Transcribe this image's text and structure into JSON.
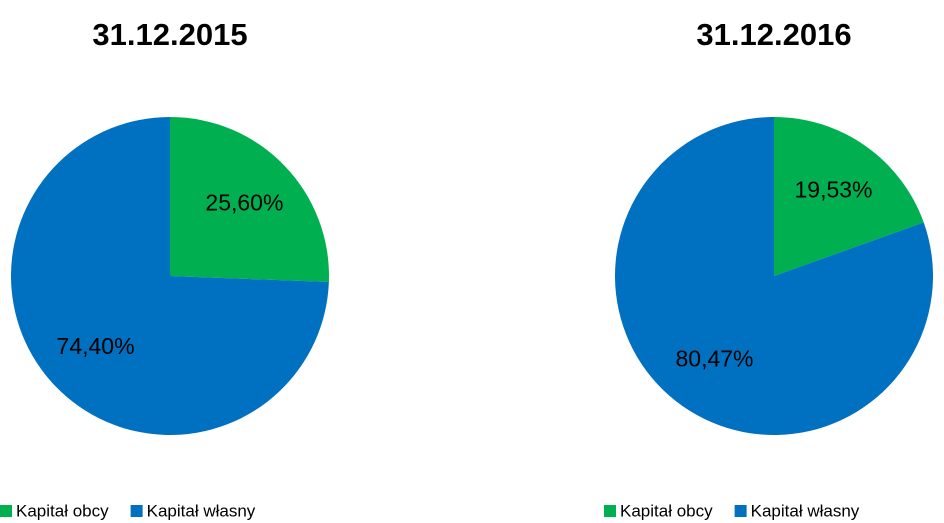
{
  "chart_data": [
    {
      "type": "pie",
      "title": "31.12.2015",
      "categories": [
        "Kapitał obcy",
        "Kapitał własny"
      ],
      "values": [
        25.6,
        74.4
      ],
      "value_labels": [
        "25,60%",
        "74,40%"
      ],
      "colors": [
        "#00b050",
        "#0070c0"
      ],
      "legend": "bottom"
    },
    {
      "type": "pie",
      "title": "31.12.2016",
      "categories": [
        "Kapitał obcy",
        "Kapitał własny"
      ],
      "values": [
        19.53,
        80.47
      ],
      "value_labels": [
        "19,53%",
        "80,47%"
      ],
      "colors": [
        "#00b050",
        "#0070c0"
      ],
      "legend": "bottom"
    }
  ]
}
